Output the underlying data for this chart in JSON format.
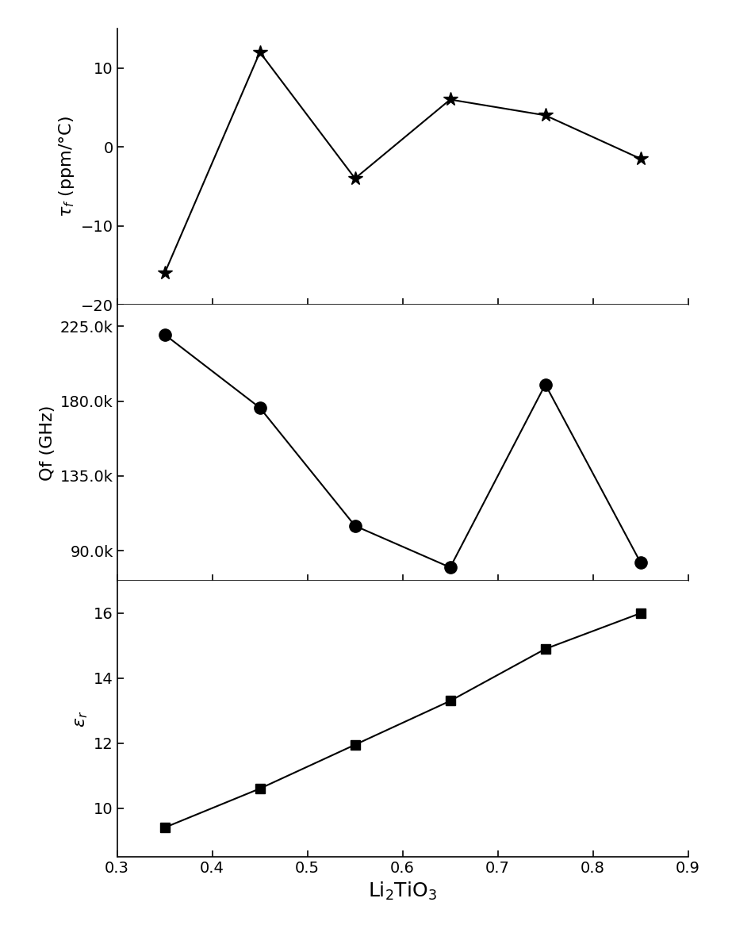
{
  "x_tau": [
    0.35,
    0.45,
    0.55,
    0.65,
    0.75,
    0.85
  ],
  "y_tau": [
    -16,
    12,
    -4,
    6,
    4,
    -1.5
  ],
  "x_qf": [
    0.35,
    0.45,
    0.55,
    0.65,
    0.75,
    0.85
  ],
  "y_qf": [
    220000,
    176000,
    105000,
    80000,
    190000,
    83000
  ],
  "x_er": [
    0.35,
    0.45,
    0.55,
    0.65,
    0.75,
    0.85
  ],
  "y_er": [
    9.4,
    10.6,
    11.95,
    13.3,
    14.9,
    16.0
  ],
  "tau_ylim": [
    -20,
    15
  ],
  "tau_yticks": [
    -20,
    -10,
    0,
    10
  ],
  "qf_ylim": [
    72000,
    238000
  ],
  "qf_yticks": [
    90000,
    135000,
    180000,
    225000
  ],
  "er_ylim": [
    8.5,
    17.0
  ],
  "er_yticks": [
    10,
    12,
    14,
    16
  ],
  "xlim": [
    0.3,
    0.9
  ],
  "xticks": [
    0.3,
    0.4,
    0.5,
    0.6,
    0.7,
    0.8,
    0.9
  ],
  "xlabel": "Li$_2$TiO$_3$",
  "ylabel_tau": "$\\tau_f$ (ppm/°C)",
  "ylabel_qf": "Qf (GHz)",
  "ylabel_er": "$\\varepsilon_r$",
  "color": "#000000",
  "linewidth": 1.5,
  "markersize_star": 13,
  "markersize_circle": 11,
  "markersize_square": 9,
  "tick_labelsize": 14,
  "axis_labelsize": 16,
  "xlabel_fontsize": 18
}
